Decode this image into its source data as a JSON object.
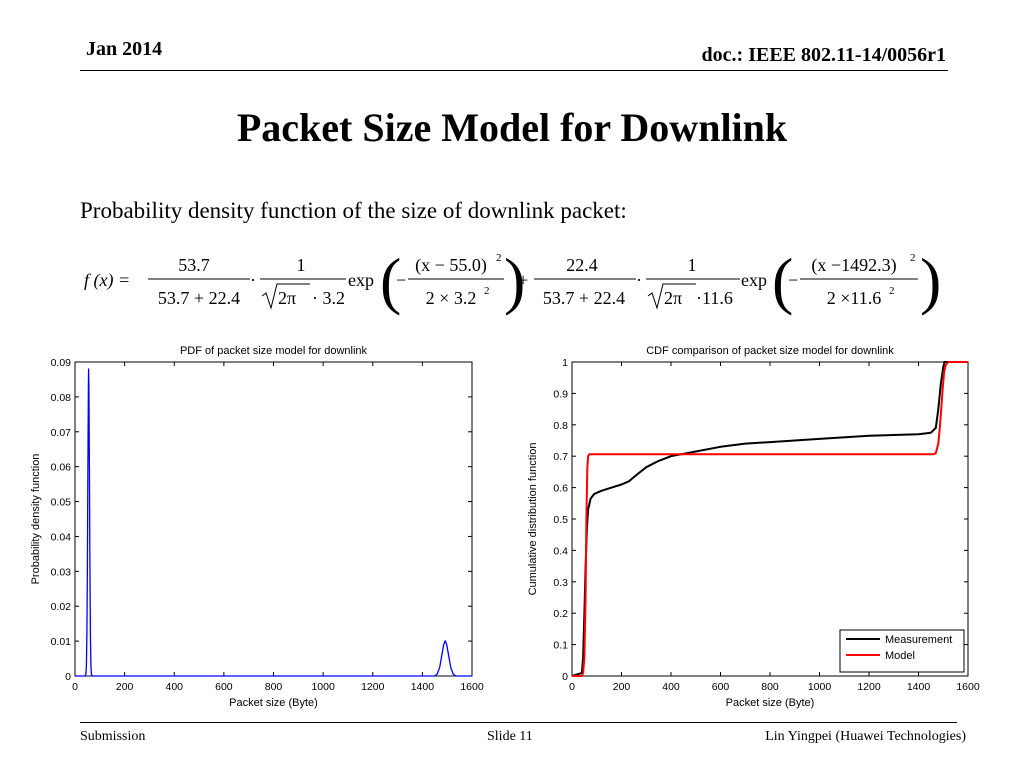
{
  "header": {
    "date": "Jan 2014",
    "doc": "doc.: IEEE 802.11-14/0056r1"
  },
  "title": "Packet Size Model for Downlink",
  "intro": "Probability density function of the size of downlink packet:",
  "formula": {
    "lhs": "f (x) =",
    "t1_num": "53.7",
    "t1_den": "53.7 + 22.4",
    "t1_one": "1",
    "t1_sqrt": "2π",
    "t1_sigma": "· 3.2",
    "t1_exp": "exp",
    "t1_enum": "(x − 55.0)",
    "t1_eden": "2 × 3.2",
    "plus": "+",
    "t2_num": "22.4",
    "t2_den": "53.7 + 22.4",
    "t2_one": "1",
    "t2_sqrt": "2π",
    "t2_sigma": "·11.6",
    "t2_exp": "exp",
    "t2_enum": "(x −1492.3)",
    "t2_eden": "2 ×11.6",
    "sq": "2",
    "dot": "·",
    "minus": "−"
  },
  "chart_data": [
    {
      "type": "line",
      "title": "PDF of packet size model for downlink",
      "xlabel": "Packet size (Byte)",
      "ylabel": "Probability density function",
      "xlim": [
        0,
        1600
      ],
      "ylim": [
        0,
        0.09
      ],
      "xticks": [
        0,
        200,
        400,
        600,
        800,
        1000,
        1200,
        1400,
        1600
      ],
      "yticks": [
        0,
        0.01,
        0.02,
        0.03,
        0.04,
        0.05,
        0.06,
        0.07,
        0.08,
        0.09
      ],
      "ytick_labels": [
        "0",
        "0.01",
        "0.02",
        "0.03",
        "0.04",
        "0.05",
        "0.06",
        "0.07",
        "0.08",
        "0.09"
      ],
      "grid": false,
      "series": [
        {
          "color": "#0000ff",
          "x": [
            0,
            40,
            44,
            46,
            48,
            50,
            52,
            54,
            55,
            56,
            58,
            60,
            62,
            64,
            66,
            70,
            100,
            1400,
            1450,
            1460,
            1470,
            1480,
            1486,
            1492,
            1498,
            1504,
            1514,
            1524,
            1534,
            1600
          ],
          "y": [
            0,
            0,
            0.0005,
            0.003,
            0.012,
            0.032,
            0.06,
            0.083,
            0.088,
            0.083,
            0.06,
            0.032,
            0.012,
            0.003,
            0.0005,
            0,
            0,
            0,
            0,
            0.0006,
            0.0025,
            0.0066,
            0.009,
            0.0101,
            0.009,
            0.0066,
            0.0025,
            0.0006,
            0,
            0
          ]
        }
      ]
    },
    {
      "type": "line",
      "title": "CDF comparison of packet size model for downlink",
      "xlabel": "Packet size (Byte)",
      "ylabel": "Cumulative distribution function",
      "xlim": [
        0,
        1600
      ],
      "ylim": [
        0,
        1
      ],
      "xticks": [
        0,
        200,
        400,
        600,
        800,
        1000,
        1200,
        1400,
        1600
      ],
      "yticks": [
        0,
        0.1,
        0.2,
        0.3,
        0.4,
        0.5,
        0.6,
        0.7,
        0.8,
        0.9,
        1
      ],
      "ytick_labels": [
        "0",
        "0.1",
        "0.2",
        "0.3",
        "0.4",
        "0.5",
        "0.6",
        "0.7",
        "0.8",
        "0.9",
        "1"
      ],
      "grid": false,
      "legend": "bottom-right",
      "series": [
        {
          "name": "Measurement",
          "color": "#000000",
          "x": [
            0,
            40,
            45,
            50,
            55,
            60,
            65,
            75,
            90,
            120,
            160,
            200,
            230,
            260,
            300,
            350,
            400,
            500,
            600,
            700,
            800,
            1000,
            1200,
            1400,
            1450,
            1470,
            1480,
            1490,
            1500,
            1505,
            1510,
            1600
          ],
          "y": [
            0,
            0.01,
            0.06,
            0.2,
            0.35,
            0.47,
            0.53,
            0.565,
            0.58,
            0.59,
            0.6,
            0.61,
            0.62,
            0.64,
            0.665,
            0.685,
            0.7,
            0.715,
            0.73,
            0.74,
            0.745,
            0.755,
            0.765,
            0.77,
            0.775,
            0.79,
            0.85,
            0.93,
            0.985,
            1.0,
            1.0,
            1.0
          ]
        },
        {
          "name": "Model",
          "color": "#ff0000",
          "x": [
            0,
            40,
            45,
            50,
            55,
            58,
            62,
            65,
            70,
            1460,
            1470,
            1480,
            1486,
            1492,
            1498,
            1504,
            1510,
            1520,
            1600
          ],
          "y": [
            0,
            0,
            0.01,
            0.06,
            0.25,
            0.5,
            0.66,
            0.7,
            0.706,
            0.706,
            0.71,
            0.74,
            0.79,
            0.853,
            0.92,
            0.97,
            0.99,
            1.0,
            1.0
          ]
        }
      ]
    }
  ],
  "footer": {
    "left": "Submission",
    "center": "Slide 11",
    "right": "Lin Yingpei (Huawei Technologies)"
  }
}
